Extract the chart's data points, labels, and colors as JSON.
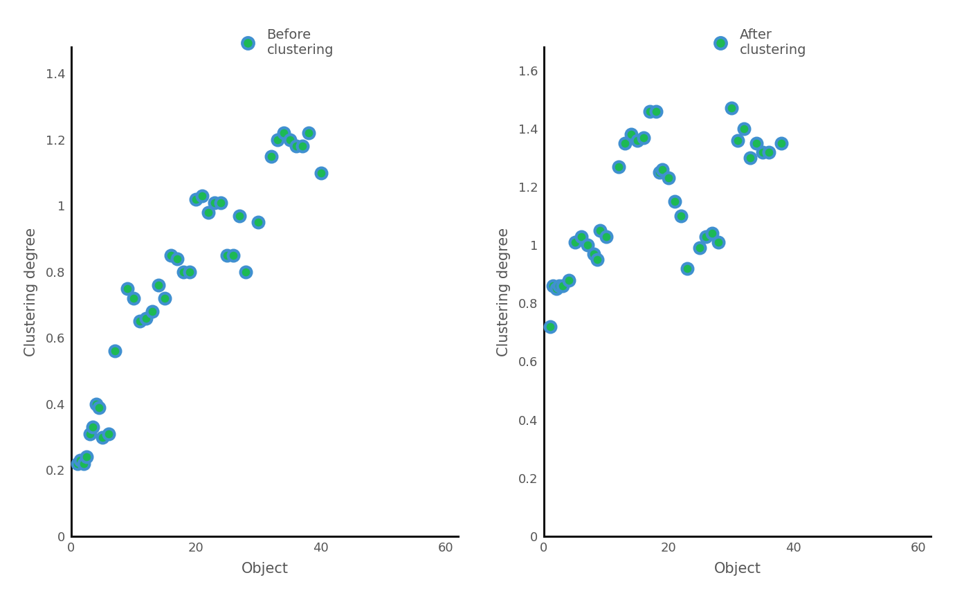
{
  "before_x": [
    1,
    1.5,
    2,
    2.5,
    3,
    3.5,
    4,
    4.5,
    5,
    6,
    7,
    9,
    10,
    11,
    12,
    13,
    14,
    15,
    16,
    17,
    18,
    19,
    20,
    21,
    22,
    23,
    24,
    25,
    26,
    27,
    28,
    30,
    32,
    33,
    34,
    35,
    36,
    37,
    38,
    40
  ],
  "before_y": [
    0.22,
    0.23,
    0.22,
    0.24,
    0.31,
    0.33,
    0.4,
    0.39,
    0.3,
    0.31,
    0.56,
    0.75,
    0.72,
    0.65,
    0.66,
    0.68,
    0.76,
    0.72,
    0.85,
    0.84,
    0.8,
    0.8,
    1.02,
    1.03,
    0.98,
    1.01,
    1.01,
    0.85,
    0.85,
    0.97,
    0.8,
    0.95,
    1.15,
    1.2,
    1.22,
    1.2,
    1.18,
    1.18,
    1.22,
    1.1
  ],
  "after_x": [
    1,
    1.5,
    2,
    2.5,
    3,
    4,
    5,
    6,
    7,
    8,
    8.5,
    9,
    10,
    12,
    13,
    14,
    15,
    16,
    17,
    18,
    18.5,
    19,
    20,
    21,
    22,
    23,
    25,
    26,
    27,
    28,
    30,
    31,
    32,
    33,
    34,
    35,
    36,
    38
  ],
  "after_y": [
    0.72,
    0.86,
    0.85,
    0.86,
    0.86,
    0.88,
    1.01,
    1.03,
    1.0,
    0.97,
    0.95,
    1.05,
    1.03,
    1.27,
    1.35,
    1.38,
    1.36,
    1.37,
    1.46,
    1.46,
    1.25,
    1.26,
    1.23,
    1.15,
    1.1,
    0.92,
    0.99,
    1.03,
    1.04,
    1.01,
    1.47,
    1.36,
    1.4,
    1.3,
    1.35,
    1.32,
    1.32,
    1.35
  ],
  "marker_face_color": "#1db954",
  "marker_edge_color": "#4090d0",
  "marker_size": 130,
  "marker_edge_width": 3.0,
  "before_xlabel": "Object",
  "before_ylabel": "Clustering degree",
  "after_xlabel": "Object",
  "after_ylabel": "Clustering degree",
  "before_legend": "Before\nclustering",
  "after_legend": "After\nclustering",
  "before_xlim": [
    0,
    62
  ],
  "before_ylim": [
    0,
    1.48
  ],
  "after_xlim": [
    0,
    62
  ],
  "after_ylim": [
    0,
    1.68
  ],
  "before_xticks": [
    0,
    20,
    40,
    60
  ],
  "before_yticks": [
    0,
    0.2,
    0.4,
    0.6,
    0.8,
    1.0,
    1.2,
    1.4
  ],
  "after_xticks": [
    0,
    20,
    40,
    60
  ],
  "after_yticks": [
    0,
    0.2,
    0.4,
    0.6,
    0.8,
    1.0,
    1.2,
    1.4,
    1.6
  ],
  "axis_color": "#111111",
  "tick_label_color": "#555555",
  "label_color": "#555555",
  "legend_color": "#555555",
  "background_color": "#ffffff",
  "font_size_labels": 15,
  "font_size_ticks": 13,
  "font_size_legend": 14
}
